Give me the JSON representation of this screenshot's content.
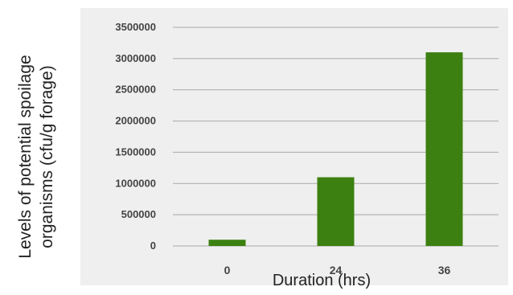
{
  "chart_data": {
    "type": "bar",
    "categories": [
      "0",
      "24",
      "36"
    ],
    "values": [
      100000,
      1100000,
      3100000
    ],
    "xlabel": "Duration (hrs)",
    "ylabel": "Levels of potential spoilage organisms (cfu/g forage)",
    "ylabel_lines": [
      "Levels of potential spoilage",
      "organisms (cfu/g forage)"
    ],
    "ylim": [
      0,
      3500000
    ],
    "yticks": [
      "0",
      "500000",
      "1000000",
      "1500000",
      "2000000",
      "2500000",
      "3000000",
      "3500000"
    ],
    "grid": true,
    "bar_color": "#3b8010",
    "grid_color": "#a9a9a9",
    "plot_background": "#efefef"
  }
}
